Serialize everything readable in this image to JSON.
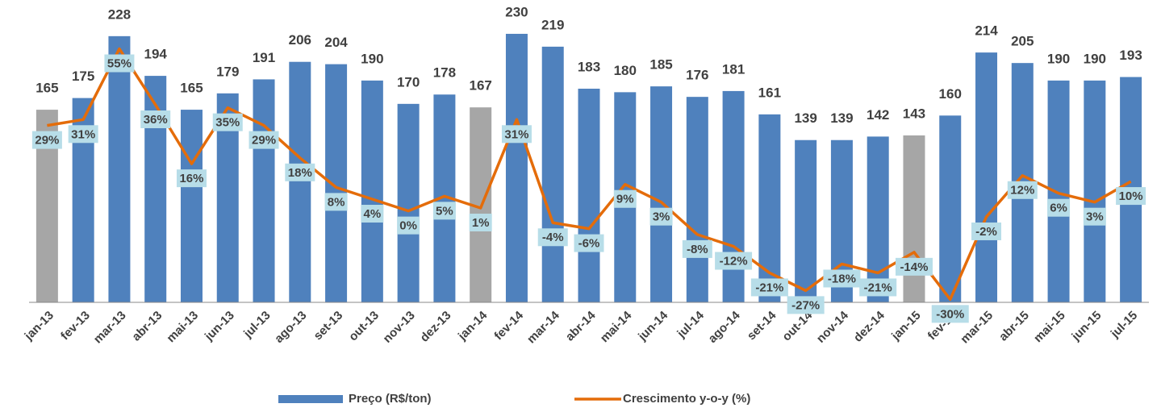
{
  "chart_data": {
    "type": "bar_line",
    "categories": [
      "jan-13",
      "fev-13",
      "mar-13",
      "abr-13",
      "mai-13",
      "jun-13",
      "jul-13",
      "ago-13",
      "set-13",
      "out-13",
      "nov-13",
      "dez-13",
      "jan-14",
      "fev-14",
      "mar-14",
      "abr-14",
      "mai-14",
      "jun-14",
      "jul-14",
      "ago-14",
      "set-14",
      "out-14",
      "nov-14",
      "dez-14",
      "jan-15",
      "fev-15",
      "mar-15",
      "abr-15",
      "mai-15",
      "jun-15",
      "jul-15"
    ],
    "series": [
      {
        "name": "Preço (R$/ton)",
        "type": "bar",
        "color": "#4f81bd",
        "colors": [
          "#a6a6a6",
          "#4f81bd",
          "#4f81bd",
          "#4f81bd",
          "#4f81bd",
          "#4f81bd",
          "#4f81bd",
          "#4f81bd",
          "#4f81bd",
          "#4f81bd",
          "#4f81bd",
          "#4f81bd",
          "#a6a6a6",
          "#4f81bd",
          "#4f81bd",
          "#4f81bd",
          "#4f81bd",
          "#4f81bd",
          "#4f81bd",
          "#4f81bd",
          "#4f81bd",
          "#4f81bd",
          "#4f81bd",
          "#4f81bd",
          "#a6a6a6",
          "#4f81bd",
          "#4f81bd",
          "#4f81bd",
          "#4f81bd",
          "#4f81bd",
          "#4f81bd"
        ],
        "values": [
          165,
          175,
          228,
          194,
          165,
          179,
          191,
          206,
          204,
          190,
          170,
          178,
          167,
          230,
          219,
          183,
          180,
          185,
          176,
          181,
          161,
          139,
          139,
          142,
          143,
          160,
          214,
          205,
          190,
          190,
          193
        ]
      },
      {
        "name": "Crescimento y-o-y (%)",
        "type": "line",
        "axis": "y2",
        "color": "#e46c0a",
        "values": [
          29,
          31,
          55,
          36,
          16,
          35,
          29,
          18,
          8,
          4,
          0,
          5,
          1,
          31,
          -4,
          -6,
          9,
          3,
          -8,
          -12,
          -21,
          -27,
          -18,
          -21,
          -14,
          -30,
          -2,
          12,
          6,
          3,
          10
        ],
        "value_labels": [
          "29%",
          "31%",
          "55%",
          "36%",
          "16%",
          "35%",
          "29%",
          "18%",
          "8%",
          "4%",
          "0%",
          "5%",
          "1%",
          "31%",
          "-4%",
          "-6%",
          "9%",
          "3%",
          "-8%",
          "-12%",
          "-21%",
          "-27%",
          "-18%",
          "-21%",
          "-14%",
          "-30%",
          "-2%",
          "12%",
          "6%",
          "3%",
          "10%"
        ]
      }
    ],
    "ylim": [
      0,
      250
    ],
    "y2lim": [
      -31,
      68
    ],
    "label_box_color": "#b7dde8"
  }
}
